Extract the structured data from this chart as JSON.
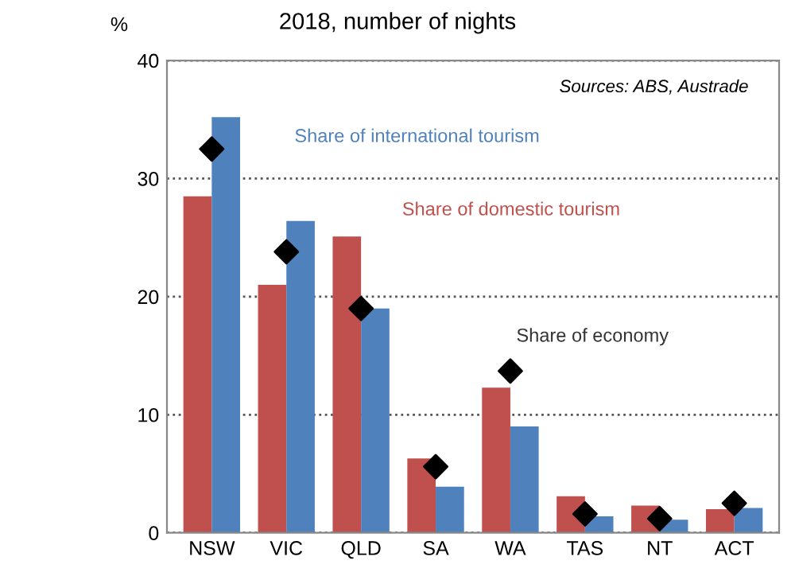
{
  "chart_data": {
    "type": "bar",
    "title": "2018, number of nights",
    "ylabel": "%",
    "categories": [
      "NSW",
      "VIC",
      "QLD",
      "SA",
      "WA",
      "TAS",
      "NT",
      "ACT"
    ],
    "series": [
      {
        "name": "Share of domestic tourism",
        "color": "#c0504d",
        "values": [
          28.5,
          21,
          25.1,
          6.3,
          12.3,
          3.1,
          2.3,
          2.0
        ]
      },
      {
        "name": "Share of international tourism",
        "color": "#4f81bd",
        "values": [
          35.2,
          26.4,
          19,
          3.9,
          9.0,
          1.4,
          1.1,
          2.1
        ]
      },
      {
        "name": "Share of economy",
        "type": "scatter",
        "marker": "diamond",
        "color": "#000000",
        "x": [
          "NSW",
          "VIC",
          "QLD",
          "SA",
          "WA",
          "TAS",
          "NT",
          "ACT"
        ],
        "values": [
          32.5,
          23.8,
          19,
          5.6,
          13.7,
          1.6,
          1.2,
          2.5
        ]
      }
    ],
    "annotations": [
      "Sources: ABS, Austrade"
    ],
    "ylim": [
      0,
      40
    ],
    "yticks": [
      0,
      10,
      20,
      30,
      40
    ],
    "grid": "y",
    "legend": false
  }
}
